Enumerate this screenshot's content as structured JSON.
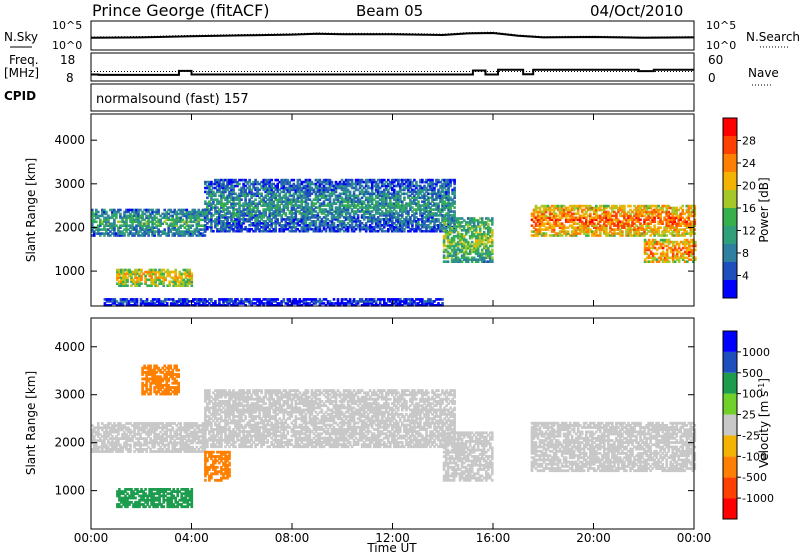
{
  "header": {
    "title": "Prince George (fitACF)",
    "beam": "Beam 05",
    "date": "04/Oct/2010"
  },
  "left_labels": {
    "nsky": "N.Sky",
    "freq": "Freq.",
    "freq_unit": "[MHz]",
    "cpid": "CPID"
  },
  "right_labels": {
    "nsearch": "N.Search",
    "nave": "Nave"
  },
  "cpid_text": "normalsound (fast) 157",
  "colors": {
    "power_scale": [
      "#0000ff",
      "#1f4fbf",
      "#2e7fa0",
      "#2fa07a",
      "#36b04a",
      "#a5c828",
      "#f2b400",
      "#ff8000",
      "#ff4000",
      "#ff0000"
    ],
    "velocity_scale": [
      "#0000ff",
      "#1f4fbf",
      "#1d9c4e",
      "#6fd12a",
      "#c8c8c8",
      "#f2b400",
      "#ff8000",
      "#ff4000",
      "#ff0000"
    ]
  },
  "chart_data": [
    {
      "type": "line",
      "panel": "noise",
      "yticks": [
        "10^5",
        "10^0"
      ],
      "right_yticks": [
        "10^5",
        "10^0"
      ],
      "series": [
        {
          "name": "N.Sky",
          "x": [
            0,
            2,
            4,
            6,
            8,
            9,
            10,
            12,
            14,
            15,
            16,
            17,
            18,
            20,
            22,
            24
          ],
          "y": [
            2.8,
            2.9,
            3.2,
            3.4,
            3.6,
            3.8,
            3.7,
            3.7,
            3.5,
            3.9,
            4.0,
            3.3,
            2.9,
            3.0,
            2.8,
            2.9
          ]
        },
        {
          "name": "N.Search",
          "x": [
            0,
            2,
            4,
            6,
            8,
            9,
            10,
            12,
            14,
            15,
            16,
            17,
            18,
            20,
            22,
            24
          ],
          "y": [
            3.0,
            3.1,
            3.4,
            3.6,
            3.8,
            4.0,
            3.9,
            3.9,
            3.7,
            4.1,
            4.2,
            3.5,
            3.1,
            3.2,
            3.0,
            3.1
          ]
        }
      ]
    },
    {
      "type": "line",
      "panel": "frequency",
      "yticks": [
        "18",
        "8"
      ],
      "right_yticks": [
        "60",
        "0"
      ],
      "series": [
        {
          "name": "Freq.",
          "x": [
            0,
            0.3,
            3.5,
            4.0,
            8.0,
            15.0,
            15.2,
            15.7,
            16.2,
            17.2,
            17.6,
            21.8,
            22.4,
            24
          ],
          "y": [
            11.2,
            11.0,
            13.4,
            11.2,
            11.2,
            11.2,
            13.6,
            11.2,
            14.0,
            11.4,
            14.0,
            13.2,
            14.0,
            14.0
          ]
        },
        {
          "name": "Nave",
          "x": [
            0,
            24
          ],
          "y": [
            30,
            30
          ]
        }
      ]
    },
    {
      "type": "heatmap",
      "panel": "power",
      "ylabel": "Slant Range [km]",
      "yticks": [
        "4000",
        "3000",
        "2000",
        "1000"
      ],
      "ylim": [
        200,
        4600
      ],
      "colorbar_label": "Power [dB]",
      "colorbar_ticks": [
        "28",
        "24",
        "20",
        "16",
        "12",
        "8",
        "4"
      ],
      "bands": [
        {
          "start": 1.0,
          "end": 4.0,
          "range": [
            650,
            1050
          ],
          "value": 20
        },
        {
          "start": 0.0,
          "end": 4.5,
          "range": [
            1800,
            2400
          ],
          "value": 12
        },
        {
          "start": 4.5,
          "end": 14.5,
          "range": [
            1900,
            3100
          ],
          "value": 10
        },
        {
          "start": 14.0,
          "end": 16.0,
          "range": [
            1200,
            2200
          ],
          "value": 16
        },
        {
          "start": 17.5,
          "end": 24.0,
          "range": [
            1800,
            2500
          ],
          "value": 24
        },
        {
          "start": 22.0,
          "end": 24.0,
          "range": [
            1200,
            1700
          ],
          "value": 24
        },
        {
          "start": 0.5,
          "end": 14.0,
          "range": [
            200,
            380
          ],
          "value": 4
        }
      ]
    },
    {
      "type": "heatmap",
      "panel": "velocity",
      "ylabel": "Slant Range [km]",
      "yticks": [
        "4000",
        "3000",
        "2000",
        "1000"
      ],
      "ylim": [
        200,
        4600
      ],
      "xlabel": "Time UT",
      "xticks": [
        "00:00",
        "04:00",
        "08:00",
        "12:00",
        "16:00",
        "20:00",
        "00:00"
      ],
      "colorbar_label": "Velocity [m s^-1]",
      "colorbar_ticks": [
        "1000",
        "500",
        "100",
        "25",
        "-25",
        "-100",
        "-500",
        "-1000"
      ],
      "bands": [
        {
          "start": 1.0,
          "end": 4.0,
          "range": [
            650,
            1050
          ],
          "value": 150
        },
        {
          "start": 0.0,
          "end": 4.5,
          "range": [
            1800,
            2400
          ],
          "value": 0
        },
        {
          "start": 4.5,
          "end": 14.5,
          "range": [
            1900,
            3100
          ],
          "value": 0
        },
        {
          "start": 4.5,
          "end": 5.5,
          "range": [
            1200,
            1800
          ],
          "value": -300
        },
        {
          "start": 14.0,
          "end": 16.0,
          "range": [
            1200,
            2200
          ],
          "value": 0
        },
        {
          "start": 17.5,
          "end": 24.0,
          "range": [
            1400,
            2400
          ],
          "value": 0
        },
        {
          "start": 2.0,
          "end": 3.5,
          "range": [
            3000,
            3600
          ],
          "value": -200
        }
      ]
    }
  ]
}
